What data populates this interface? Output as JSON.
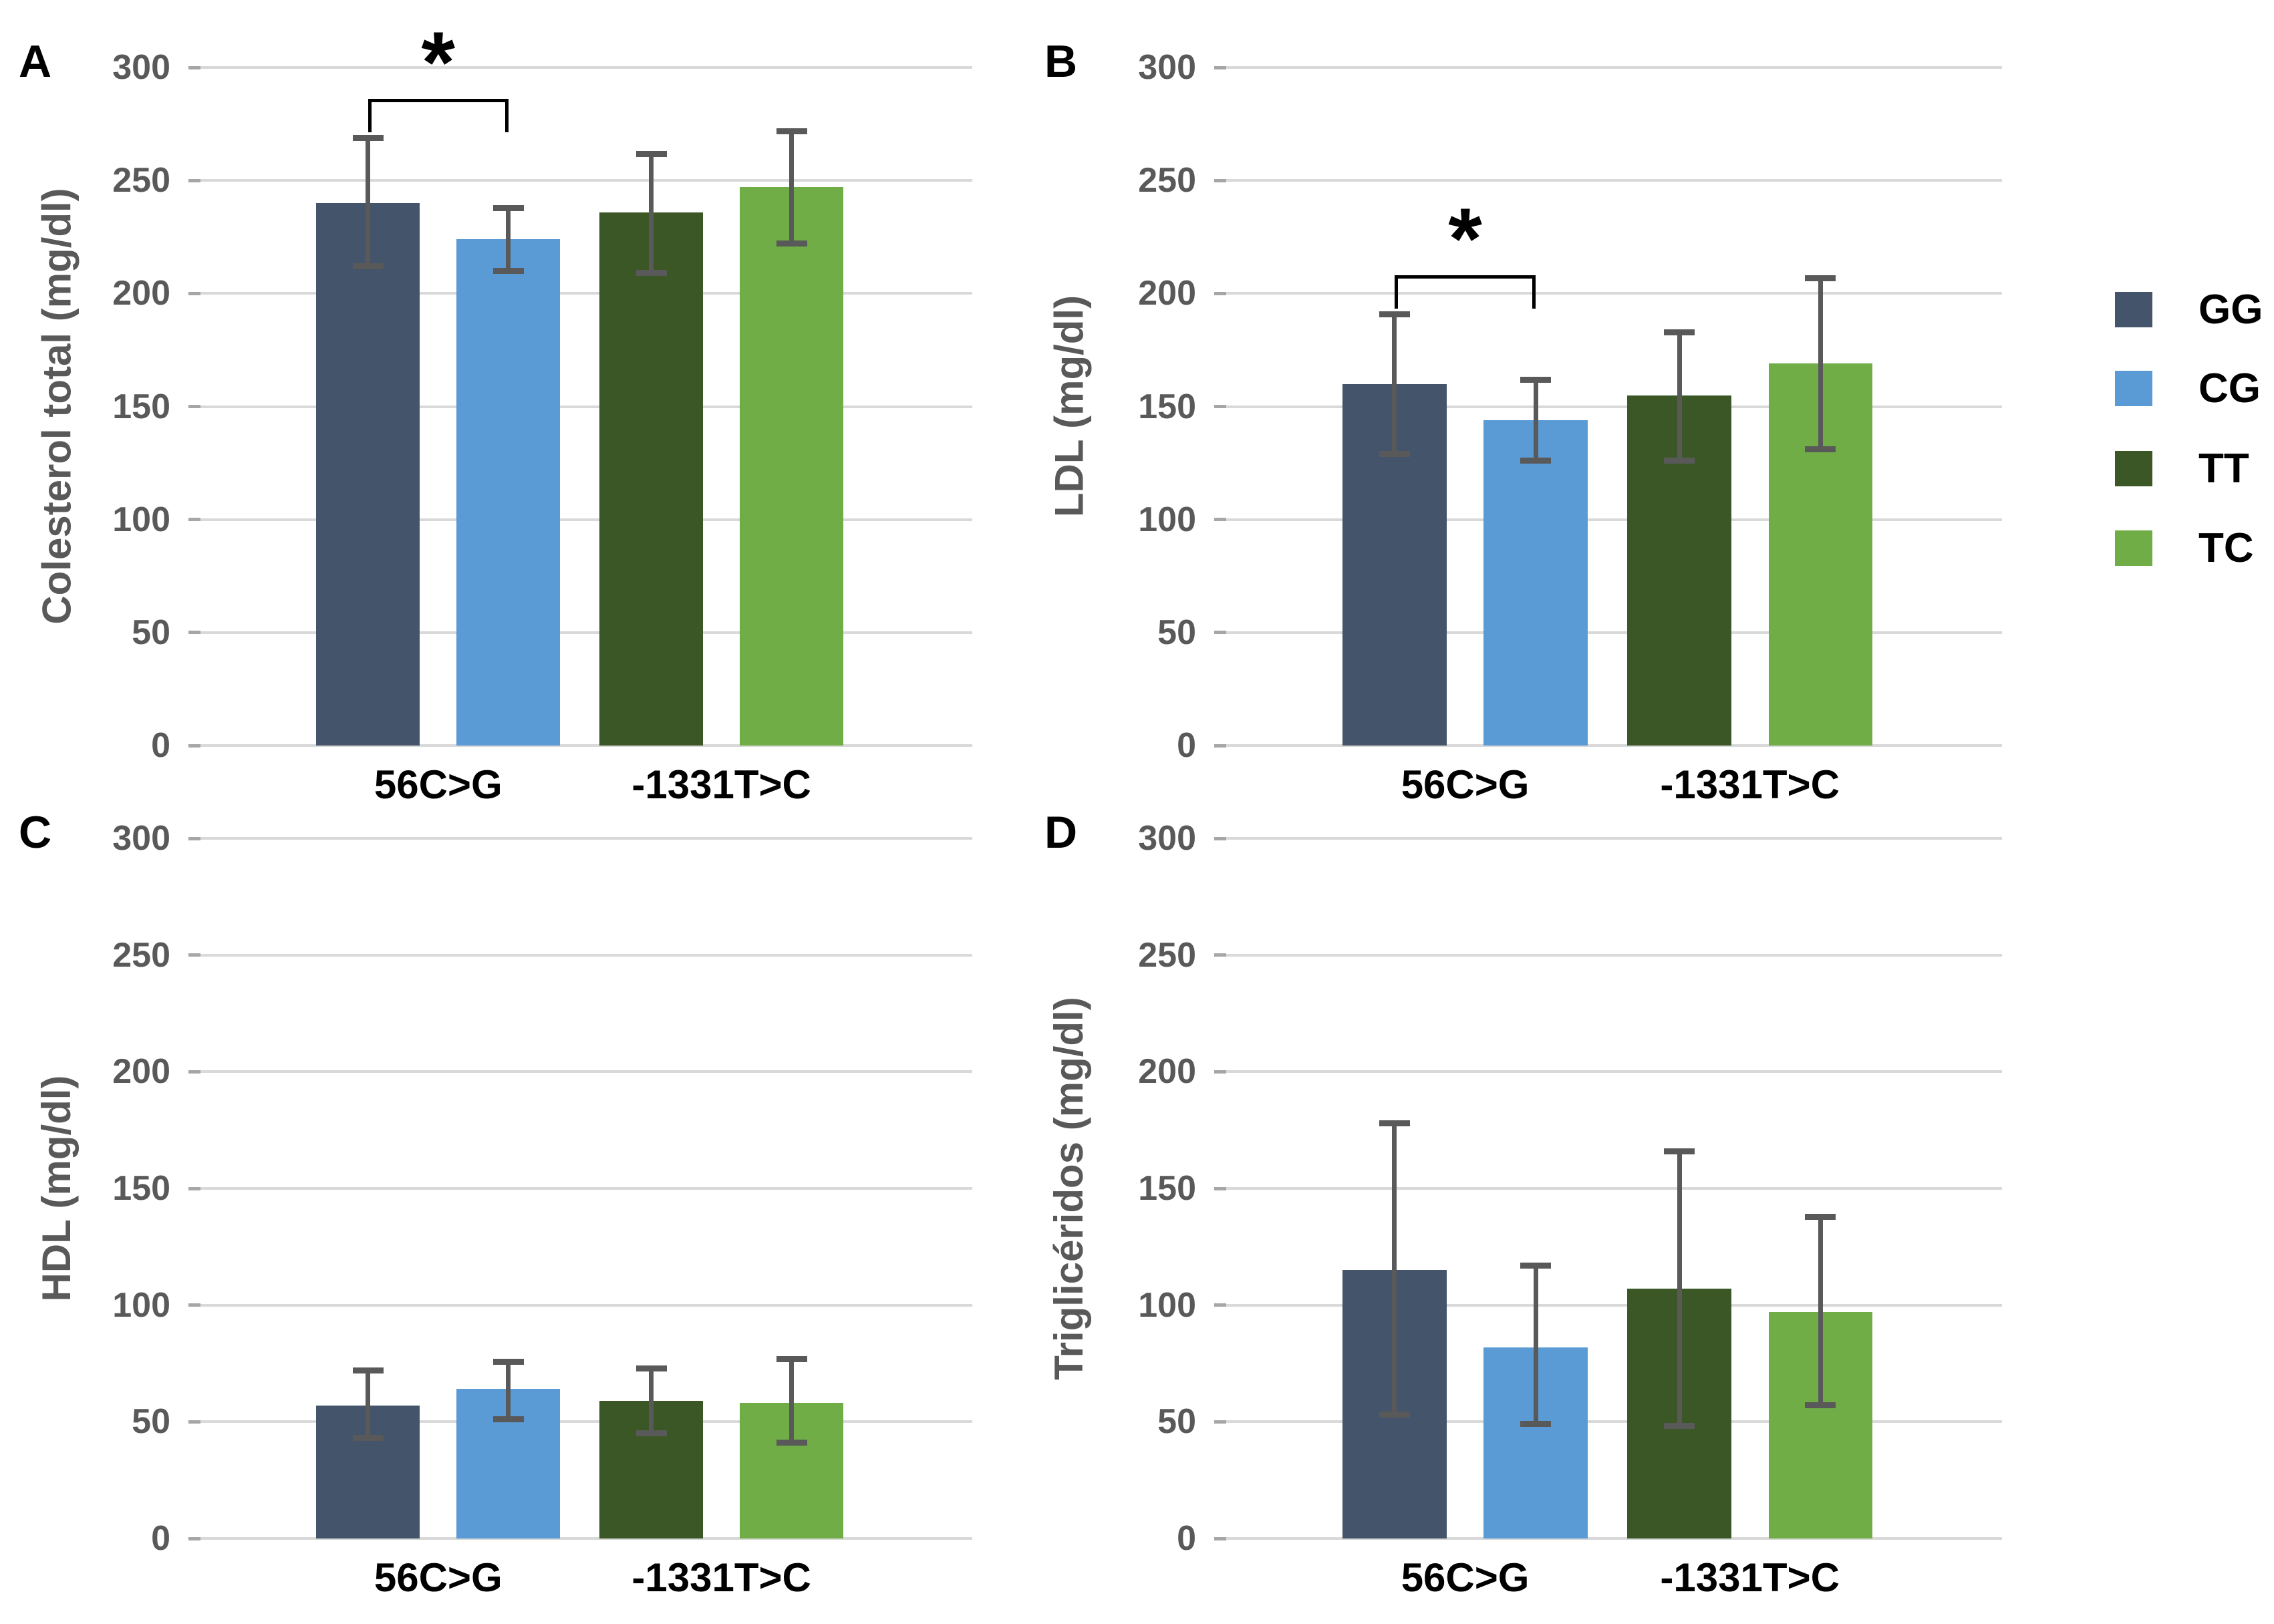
{
  "chart_data": [
    {
      "panel": "A",
      "type": "bar",
      "ylabel": "Colesterol total (mg/dl)",
      "xlabel": "",
      "ylim": [
        0,
        300
      ],
      "ytick_interval": 50,
      "yticks": [
        300,
        250,
        200,
        150,
        100,
        50,
        0
      ],
      "grid": true,
      "legend_position": "right-of-figure",
      "categories": [
        "56C>G",
        "-1331T>C"
      ],
      "series": [
        {
          "name": "GG",
          "group": "56C>G",
          "mean": 240,
          "err_low": 212,
          "err_high": 269
        },
        {
          "name": "CG",
          "group": "56C>G",
          "mean": 224,
          "err_low": 210,
          "err_high": 238
        },
        {
          "name": "TT",
          "group": "-1331T>C",
          "mean": 236,
          "err_low": 209,
          "err_high": 262
        },
        {
          "name": "TC",
          "group": "-1331T>C",
          "mean": 247,
          "err_low": 222,
          "err_high": 272
        }
      ],
      "significance": {
        "label": "*",
        "between": [
          "GG",
          "CG"
        ]
      }
    },
    {
      "panel": "B",
      "type": "bar",
      "ylabel": "LDL (mg/dl)",
      "xlabel": "",
      "ylim": [
        0,
        300
      ],
      "ytick_interval": 50,
      "yticks": [
        300,
        250,
        200,
        150,
        100,
        50,
        0
      ],
      "grid": true,
      "categories": [
        "56C>G",
        "-1331T>C"
      ],
      "series": [
        {
          "name": "GG",
          "group": "56C>G",
          "mean": 160,
          "err_low": 129,
          "err_high": 191
        },
        {
          "name": "CG",
          "group": "56C>G",
          "mean": 144,
          "err_low": 126,
          "err_high": 162
        },
        {
          "name": "TT",
          "group": "-1331T>C",
          "mean": 155,
          "err_low": 126,
          "err_high": 183
        },
        {
          "name": "TC",
          "group": "-1331T>C",
          "mean": 169,
          "err_low": 131,
          "err_high": 207
        }
      ],
      "significance": {
        "label": "*",
        "between": [
          "GG",
          "CG"
        ]
      }
    },
    {
      "panel": "C",
      "type": "bar",
      "ylabel": "HDL (mg/dl)",
      "xlabel": "",
      "ylim": [
        0,
        300
      ],
      "ytick_interval": 50,
      "yticks": [
        300,
        250,
        200,
        150,
        100,
        50,
        0
      ],
      "grid": true,
      "categories": [
        "56C>G",
        "-1331T>C"
      ],
      "series": [
        {
          "name": "GG",
          "group": "56C>G",
          "mean": 57,
          "err_low": 43,
          "err_high": 72
        },
        {
          "name": "CG",
          "group": "56C>G",
          "mean": 64,
          "err_low": 51,
          "err_high": 76
        },
        {
          "name": "TT",
          "group": "-1331T>C",
          "mean": 59,
          "err_low": 45,
          "err_high": 73
        },
        {
          "name": "TC",
          "group": "-1331T>C",
          "mean": 58,
          "err_low": 41,
          "err_high": 77
        }
      ],
      "significance": null
    },
    {
      "panel": "D",
      "type": "bar",
      "ylabel": "Triglicéridos (mg/dl)",
      "xlabel": "",
      "ylim": [
        0,
        300
      ],
      "ytick_interval": 50,
      "yticks": [
        300,
        250,
        200,
        150,
        100,
        50,
        0
      ],
      "grid": true,
      "categories": [
        "56C>G",
        "-1331T>C"
      ],
      "series": [
        {
          "name": "GG",
          "group": "56C>G",
          "mean": 115,
          "err_low": 53,
          "err_high": 178
        },
        {
          "name": "CG",
          "group": "56C>G",
          "mean": 82,
          "err_low": 49,
          "err_high": 117
        },
        {
          "name": "TT",
          "group": "-1331T>C",
          "mean": 107,
          "err_low": 48,
          "err_high": 166
        },
        {
          "name": "TC",
          "group": "-1331T>C",
          "mean": 97,
          "err_low": 57,
          "err_high": 138
        }
      ],
      "significance": null
    }
  ],
  "legend": [
    {
      "label": "GG",
      "color": "#44546A"
    },
    {
      "label": "CG",
      "color": "#5B9BD5"
    },
    {
      "label": "TT",
      "color": "#3B5726"
    },
    {
      "label": "TC",
      "color": "#70AD47"
    }
  ],
  "colors": {
    "gridline": "#D9D9D9",
    "tick_mark": "#A6A6A6",
    "axis_text": "#595959",
    "error_bar": "#595959",
    "category_text": "#000000",
    "significance": "#000000",
    "background": "#FFFFFF"
  }
}
